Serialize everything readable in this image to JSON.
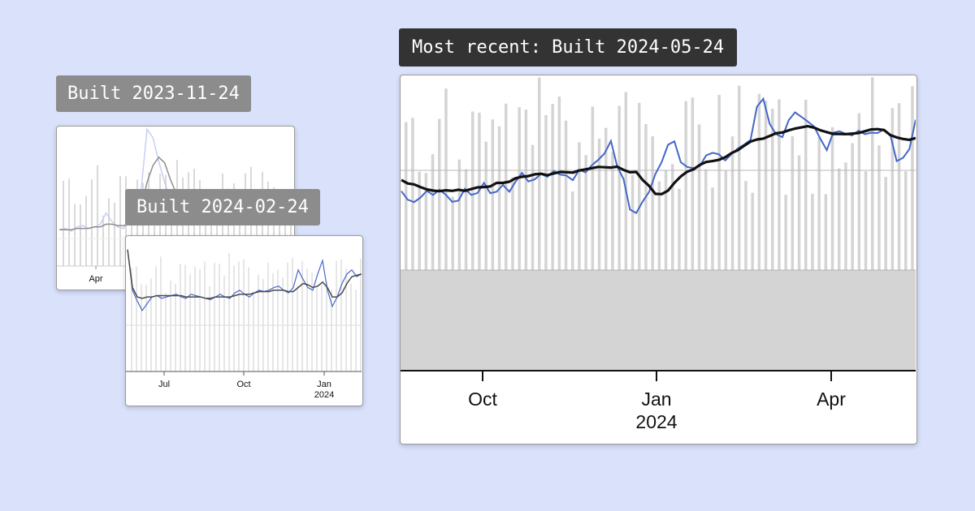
{
  "chart_data": [
    {
      "id": "c1",
      "type": "bar",
      "tag": "Built 2023-11-24",
      "x_ticks": [
        "Apr"
      ],
      "colors": {
        "bars": "#d9d9d9",
        "series": "#c8cff2",
        "avg": "#8e8e8e",
        "baseline": "#eeeeee"
      },
      "series": [
        {
          "values": [
            0.26,
            0.27,
            0.25,
            0.28,
            0.29,
            0.27,
            0.28,
            0.3,
            0.38,
            0.32,
            0.28,
            0.27,
            0.36,
            0.4,
            0.55,
            0.98,
            0.92,
            0.75,
            0.6,
            0.48,
            0.42,
            0.45,
            0.5,
            0.47,
            0.43,
            0.45,
            0.48,
            0.46,
            0.44,
            0.47,
            0.5,
            0.48,
            0.46,
            0.45,
            0.47,
            0.49,
            0.48,
            0.5,
            0.52,
            0.49,
            0.47
          ]
        },
        {
          "values": [
            0.26,
            0.26,
            0.26,
            0.27,
            0.27,
            0.27,
            0.28,
            0.28,
            0.3,
            0.3,
            0.29,
            0.29,
            0.3,
            0.34,
            0.42,
            0.6,
            0.72,
            0.78,
            0.74,
            0.62,
            0.52,
            0.48,
            0.47,
            0.47,
            0.46,
            0.46,
            0.46,
            0.46,
            0.46,
            0.46,
            0.47,
            0.47,
            0.47,
            0.46,
            0.46,
            0.47,
            0.47,
            0.48,
            0.48,
            0.48,
            0.48
          ]
        }
      ]
    },
    {
      "id": "c2",
      "type": "bar",
      "tag": "Built 2024-02-24",
      "x_ticks": [
        "Jul",
        "Oct",
        "Jan",
        "2024"
      ],
      "colors": {
        "bars": "#e6e6e6",
        "series": "#4a67c8",
        "avg": "#4a4a4a",
        "baseline": "#dddddd"
      },
      "series": [
        {
          "values": [
            0.9,
            0.6,
            0.52,
            0.45,
            0.5,
            0.55,
            0.56,
            0.54,
            0.55,
            0.56,
            0.57,
            0.55,
            0.54,
            0.57,
            0.56,
            0.55,
            0.54,
            0.53,
            0.55,
            0.57,
            0.55,
            0.54,
            0.58,
            0.6,
            0.57,
            0.55,
            0.58,
            0.6,
            0.59,
            0.6,
            0.62,
            0.63,
            0.6,
            0.58,
            0.62,
            0.75,
            0.68,
            0.62,
            0.6,
            0.72,
            0.82,
            0.6,
            0.48,
            0.55,
            0.65,
            0.72,
            0.75,
            0.7,
            0.72
          ]
        },
        {
          "values": [
            0.9,
            0.62,
            0.55,
            0.54,
            0.55,
            0.55,
            0.56,
            0.56,
            0.56,
            0.56,
            0.56,
            0.56,
            0.55,
            0.55,
            0.55,
            0.55,
            0.54,
            0.54,
            0.55,
            0.55,
            0.55,
            0.55,
            0.56,
            0.57,
            0.57,
            0.57,
            0.58,
            0.59,
            0.59,
            0.59,
            0.6,
            0.6,
            0.6,
            0.59,
            0.59,
            0.62,
            0.65,
            0.64,
            0.62,
            0.63,
            0.66,
            0.62,
            0.55,
            0.55,
            0.58,
            0.65,
            0.7,
            0.71,
            0.72
          ]
        }
      ]
    },
    {
      "id": "c3",
      "type": "bar",
      "tag": "Most recent: Built 2024-05-24",
      "x_ticks": [
        "Oct",
        "Jan",
        "2024",
        "Apr"
      ],
      "ylim": [
        0,
        100
      ],
      "colors": {
        "bars": "#d4d4d4",
        "series": "#4466c8",
        "avg": "#111111",
        "baseline": "#b0b0b0"
      },
      "series": [
        {
          "values": [
            60.8,
            57.9,
            57.1,
            58.6,
            60.9,
            59.5,
            61.3,
            59.6,
            57.2,
            57.6,
            61.6,
            59.5,
            60.2,
            63.6,
            60.1,
            60.6,
            62.9,
            60.6,
            64.1,
            67.0,
            64.1,
            64.8,
            66.6,
            65.7,
            67.6,
            66.4,
            66.1,
            64.5,
            68.0,
            67.2,
            69.6,
            71.4,
            73.6,
            77.8,
            69.1,
            64.9,
            54.6,
            53.4,
            57.3,
            60.5,
            66.6,
            70.7,
            76.5,
            77.7,
            70.6,
            69.0,
            68.6,
            69.3,
            72.9,
            73.8,
            73.3,
            71.2,
            73.4,
            75.3,
            76.6,
            78.2,
            89.4,
            92.1,
            83.6,
            80.1,
            79.1,
            84.8,
            87.5,
            86.0,
            84.4,
            82.7,
            78.5,
            74.7,
            80.6,
            81.1,
            80.2,
            79.7,
            81.3,
            80.1,
            80.6,
            80.5,
            81.7,
            80.0,
            71.0,
            72.1,
            75.0,
            85.0
          ]
        },
        {
          "values": [
            64.6,
            63.4,
            63.1,
            62.2,
            61.4,
            61.0,
            60.8,
            61.1,
            60.9,
            61.3,
            60.9,
            61.5,
            62.1,
            62.2,
            62.4,
            63.6,
            63.6,
            64.0,
            65.2,
            65.7,
            65.9,
            66.5,
            66.7,
            66.2,
            66.8,
            67.3,
            67.2,
            67.1,
            67.8,
            68.2,
            68.6,
            69.0,
            68.9,
            68.8,
            69.1,
            68.0,
            67.2,
            67.3,
            64.6,
            62.6,
            59.9,
            59.8,
            61.0,
            63.6,
            65.8,
            67.4,
            68.2,
            69.7,
            70.7,
            71.0,
            71.4,
            72.3,
            73.7,
            74.7,
            76.2,
            77.6,
            78.3,
            78.6,
            79.5,
            80.4,
            80.7,
            81.4,
            82.0,
            82.4,
            82.8,
            82.3,
            81.4,
            80.8,
            80.2,
            80.2,
            80.1,
            80.3,
            80.5,
            81.1,
            81.7,
            81.8,
            81.5,
            79.8,
            79.0,
            78.5,
            78.2,
            78.8
          ]
        }
      ]
    }
  ]
}
